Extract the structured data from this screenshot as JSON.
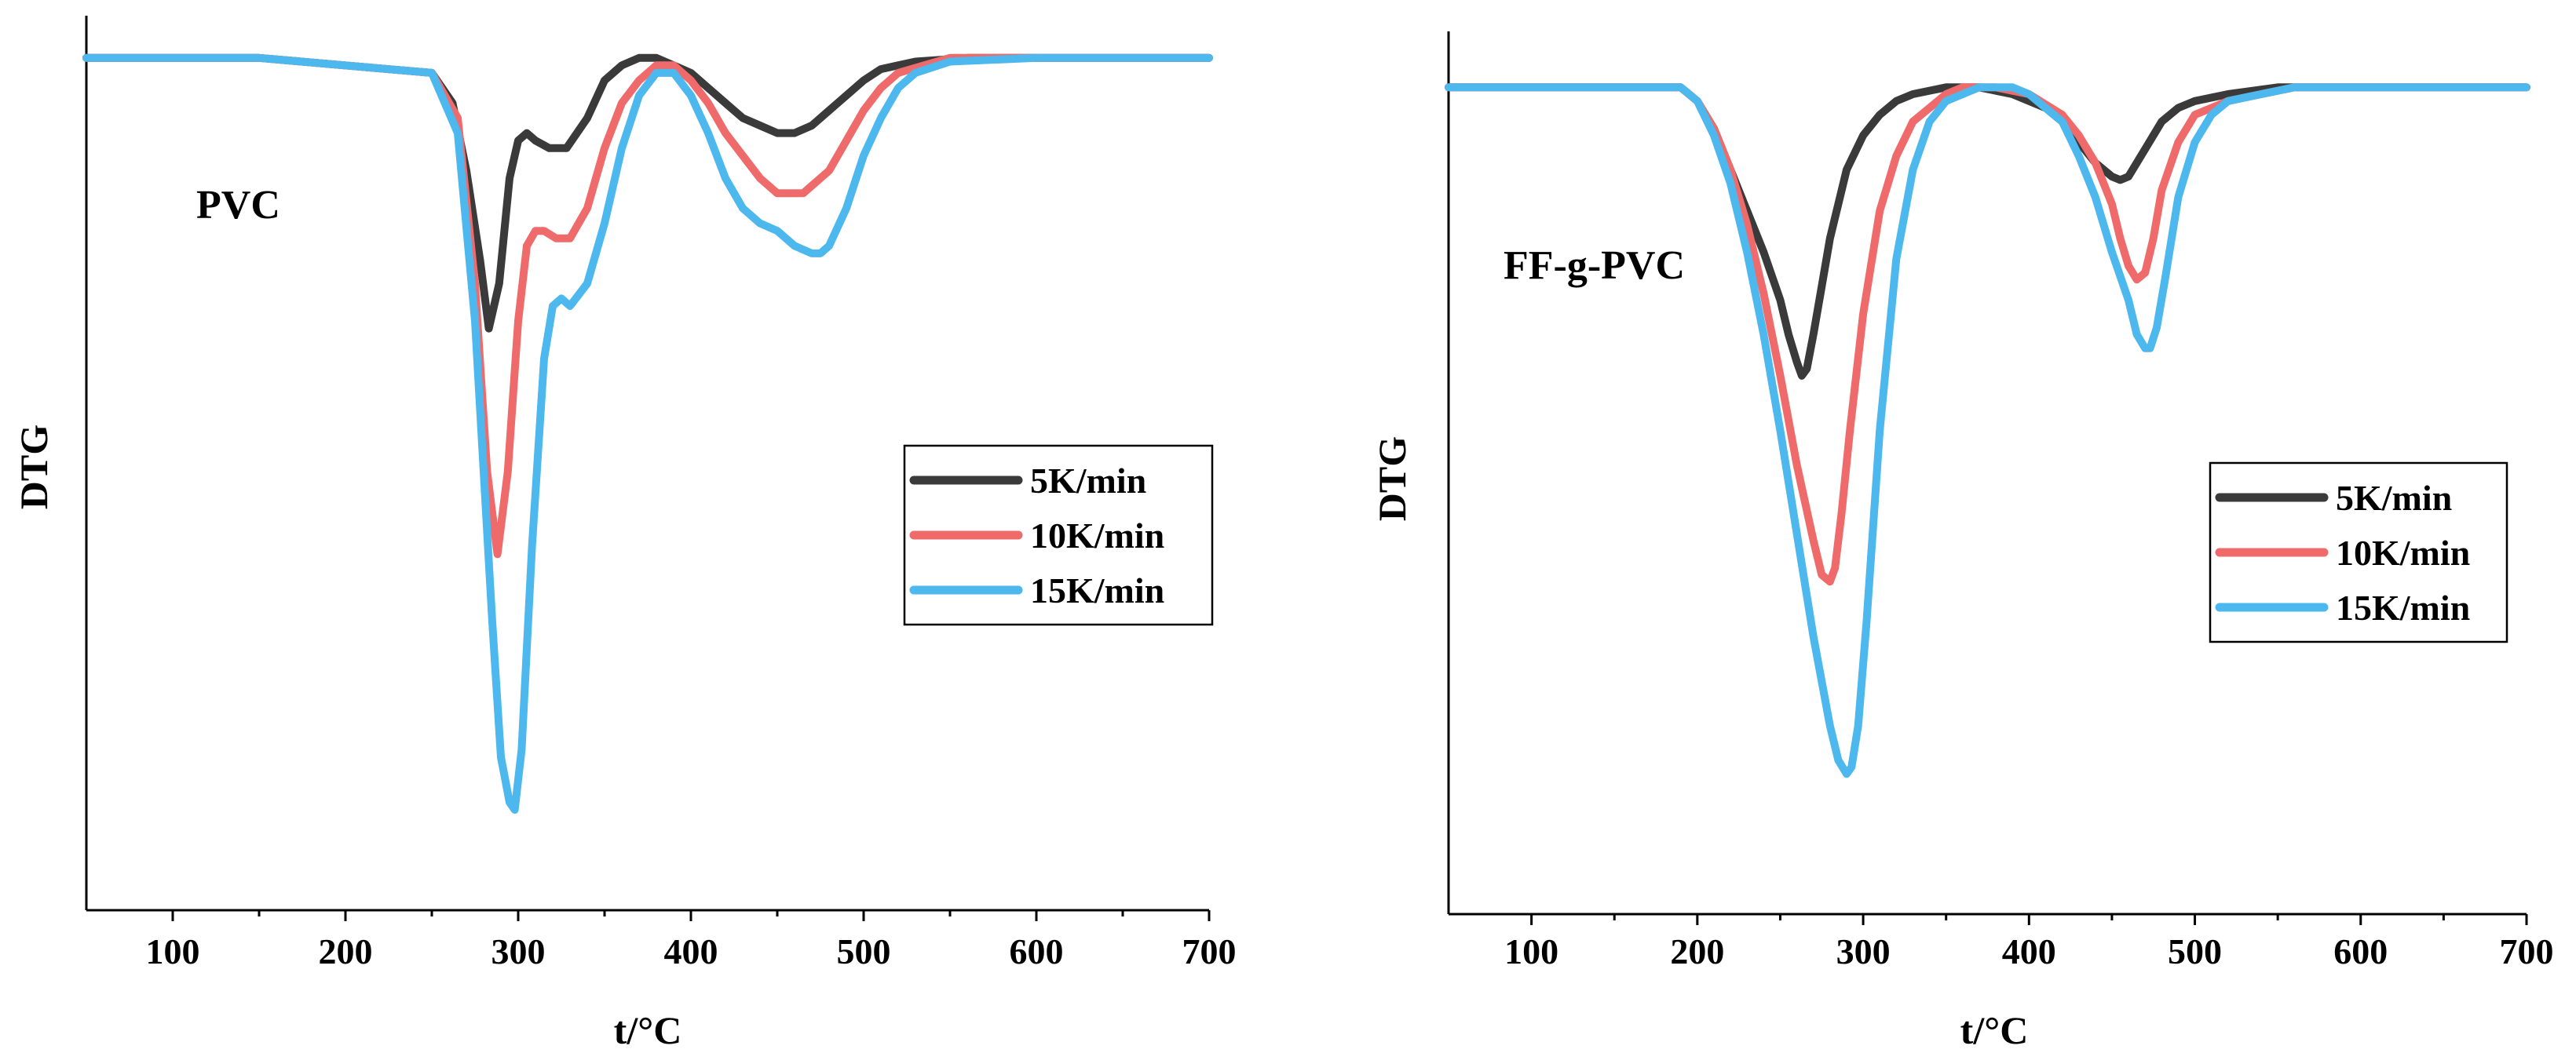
{
  "chart_data": [
    {
      "type": "line",
      "annotation": "PVC",
      "xlabel": "t/°C",
      "ylabel": "DTG",
      "xlim": [
        50,
        700
      ],
      "ylim": [
        -1.05,
        0.03
      ],
      "xticks": [
        100,
        200,
        300,
        400,
        500,
        600,
        700
      ],
      "legend_position": "center-right",
      "series": [
        {
          "name": "5K/min",
          "color": "#3a3a3a",
          "x": [
            50,
            150,
            250,
            262,
            270,
            278,
            283,
            289,
            295,
            300,
            305,
            310,
            318,
            328,
            340,
            350,
            360,
            370,
            380,
            390,
            400,
            410,
            420,
            430,
            440,
            450,
            460,
            470,
            480,
            490,
            500,
            510,
            530,
            560,
            600,
            650,
            700
          ],
          "y": [
            0,
            0,
            -0.02,
            -0.06,
            -0.15,
            -0.27,
            -0.36,
            -0.3,
            -0.16,
            -0.11,
            -0.1,
            -0.11,
            -0.12,
            -0.12,
            -0.08,
            -0.03,
            -0.01,
            0,
            0,
            -0.01,
            -0.02,
            -0.04,
            -0.06,
            -0.08,
            -0.09,
            -0.1,
            -0.1,
            -0.09,
            -0.07,
            -0.05,
            -0.03,
            -0.015,
            -0.005,
            0,
            0,
            0,
            0
          ]
        },
        {
          "name": "10K/min",
          "color": "#ef6b6b",
          "x": [
            50,
            150,
            250,
            265,
            275,
            282,
            288,
            294,
            300,
            305,
            310,
            315,
            322,
            330,
            340,
            350,
            360,
            370,
            380,
            390,
            400,
            410,
            420,
            440,
            450,
            460,
            465,
            470,
            480,
            490,
            500,
            510,
            520,
            535,
            550,
            600,
            650,
            700
          ],
          "y": [
            0,
            0,
            -0.02,
            -0.08,
            -0.3,
            -0.55,
            -0.66,
            -0.55,
            -0.35,
            -0.25,
            -0.23,
            -0.23,
            -0.24,
            -0.24,
            -0.2,
            -0.12,
            -0.06,
            -0.03,
            -0.01,
            -0.01,
            -0.03,
            -0.06,
            -0.1,
            -0.16,
            -0.18,
            -0.18,
            -0.18,
            -0.17,
            -0.15,
            -0.11,
            -0.07,
            -0.04,
            -0.02,
            -0.01,
            0,
            0,
            0,
            0
          ]
        },
        {
          "name": "15K/min",
          "color": "#4db8ee",
          "x": [
            50,
            150,
            250,
            265,
            275,
            285,
            290,
            295,
            298,
            302,
            308,
            315,
            320,
            325,
            330,
            340,
            350,
            360,
            370,
            380,
            390,
            400,
            410,
            420,
            430,
            440,
            450,
            460,
            470,
            475,
            480,
            490,
            500,
            510,
            520,
            530,
            550,
            600,
            650,
            700
          ],
          "y": [
            0,
            0,
            -0.02,
            -0.1,
            -0.35,
            -0.75,
            -0.93,
            -0.99,
            -1.0,
            -0.92,
            -0.65,
            -0.4,
            -0.33,
            -0.32,
            -0.33,
            -0.3,
            -0.22,
            -0.12,
            -0.05,
            -0.02,
            -0.02,
            -0.05,
            -0.1,
            -0.16,
            -0.2,
            -0.22,
            -0.23,
            -0.25,
            -0.26,
            -0.26,
            -0.25,
            -0.2,
            -0.13,
            -0.08,
            -0.04,
            -0.02,
            -0.005,
            0,
            0,
            0
          ]
        }
      ]
    },
    {
      "type": "line",
      "annotation": "FF-g-PVC",
      "xlabel": "t/°C",
      "ylabel": "DTG",
      "xlim": [
        50,
        700
      ],
      "ylim": [
        -1.05,
        0.03
      ],
      "xticks": [
        100,
        200,
        300,
        400,
        500,
        600,
        700
      ],
      "legend_position": "center-right",
      "series": [
        {
          "name": "5K/min",
          "color": "#3a3a3a",
          "x": [
            50,
            150,
            190,
            200,
            210,
            220,
            230,
            240,
            250,
            255,
            260,
            263,
            266,
            270,
            275,
            280,
            290,
            300,
            310,
            320,
            330,
            340,
            350,
            370,
            390,
            410,
            420,
            430,
            440,
            450,
            455,
            460,
            470,
            480,
            490,
            500,
            520,
            550,
            600,
            650,
            700
          ],
          "y": [
            0,
            0,
            0,
            -0.02,
            -0.06,
            -0.12,
            -0.18,
            -0.24,
            -0.31,
            -0.36,
            -0.4,
            -0.42,
            -0.41,
            -0.36,
            -0.29,
            -0.22,
            -0.12,
            -0.07,
            -0.04,
            -0.02,
            -0.01,
            -0.005,
            0,
            0,
            -0.01,
            -0.03,
            -0.05,
            -0.08,
            -0.11,
            -0.13,
            -0.135,
            -0.13,
            -0.09,
            -0.05,
            -0.03,
            -0.02,
            -0.01,
            0,
            0,
            0,
            0
          ]
        },
        {
          "name": "10K/min",
          "color": "#ef6b6b",
          "x": [
            50,
            150,
            190,
            200,
            210,
            220,
            230,
            240,
            250,
            260,
            270,
            275,
            280,
            283,
            287,
            292,
            300,
            310,
            320,
            330,
            340,
            350,
            360,
            380,
            400,
            420,
            430,
            440,
            450,
            455,
            460,
            465,
            470,
            475,
            480,
            490,
            500,
            520,
            540,
            560,
            600,
            650,
            700
          ],
          "y": [
            0,
            0,
            0,
            -0.02,
            -0.06,
            -0.12,
            -0.2,
            -0.3,
            -0.42,
            -0.55,
            -0.66,
            -0.71,
            -0.72,
            -0.7,
            -0.62,
            -0.5,
            -0.33,
            -0.18,
            -0.1,
            -0.05,
            -0.03,
            -0.01,
            0,
            0,
            -0.01,
            -0.04,
            -0.07,
            -0.11,
            -0.17,
            -0.22,
            -0.26,
            -0.28,
            -0.27,
            -0.22,
            -0.15,
            -0.08,
            -0.04,
            -0.02,
            -0.01,
            0,
            0,
            0,
            0
          ]
        },
        {
          "name": "15K/min",
          "color": "#4db8ee",
          "x": [
            50,
            150,
            190,
            200,
            210,
            220,
            230,
            240,
            250,
            260,
            270,
            280,
            285,
            290,
            293,
            297,
            302,
            310,
            320,
            330,
            340,
            350,
            360,
            370,
            380,
            390,
            400,
            410,
            420,
            430,
            440,
            450,
            460,
            465,
            470,
            473,
            477,
            482,
            490,
            500,
            510,
            520,
            540,
            560,
            580,
            600,
            650,
            700
          ],
          "y": [
            0,
            0,
            0,
            -0.02,
            -0.07,
            -0.14,
            -0.24,
            -0.36,
            -0.5,
            -0.65,
            -0.8,
            -0.93,
            -0.98,
            -1.0,
            -0.99,
            -0.93,
            -0.78,
            -0.5,
            -0.25,
            -0.12,
            -0.05,
            -0.02,
            -0.01,
            0,
            0,
            0,
            -0.01,
            -0.03,
            -0.05,
            -0.1,
            -0.16,
            -0.24,
            -0.31,
            -0.36,
            -0.38,
            -0.38,
            -0.35,
            -0.28,
            -0.16,
            -0.08,
            -0.04,
            -0.02,
            -0.01,
            0,
            0,
            0,
            0,
            0
          ]
        }
      ]
    }
  ]
}
